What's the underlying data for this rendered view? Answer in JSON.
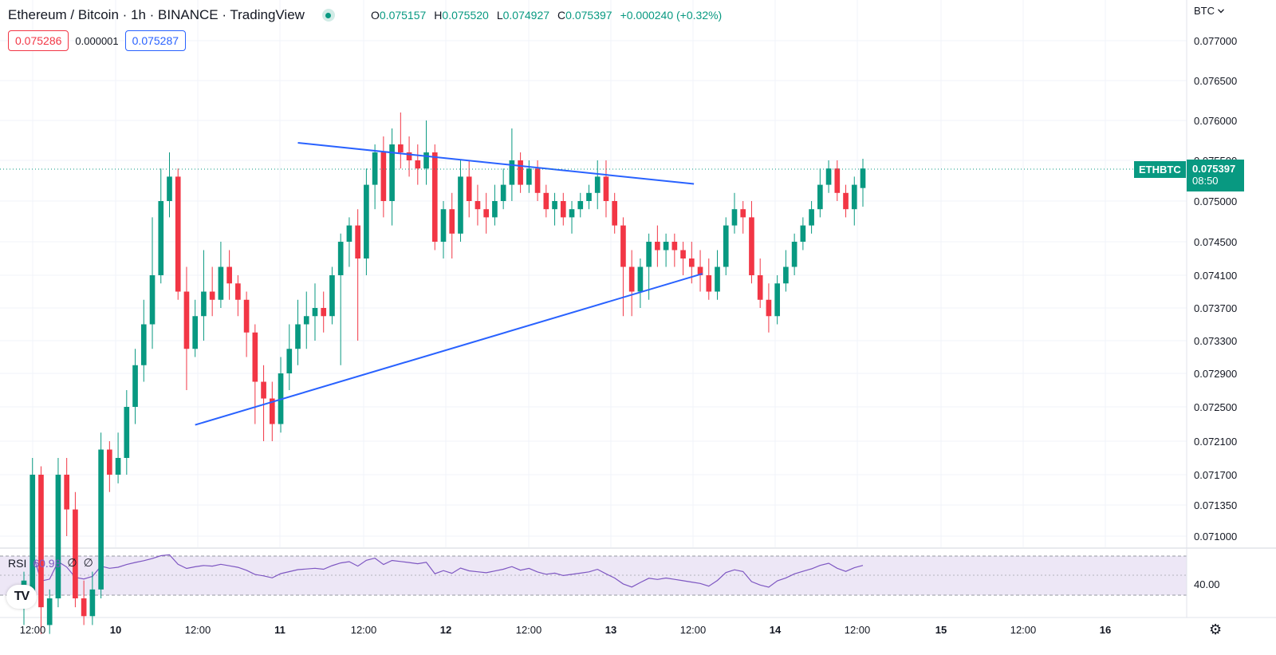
{
  "header": {
    "title": "Ethereum / Bitcoin · 1h · BINANCE · TradingView",
    "ohlc": [
      {
        "k": "O",
        "v": "0.075157"
      },
      {
        "k": "H",
        "v": "0.075520"
      },
      {
        "k": "L",
        "v": "0.074927"
      },
      {
        "k": "C",
        "v": "0.075397"
      },
      {
        "k": "",
        "v": "+0.000240 (+0.32%)"
      }
    ]
  },
  "quote": {
    "sell": "0.075286",
    "spread": "0.000001",
    "buy": "0.075287"
  },
  "axis_unit": "BTC",
  "symbol": "ETHBTC",
  "last_price": "0.075397",
  "countdown": "08:50",
  "rsi": {
    "label": "RSI",
    "value": "60.98",
    "params": [
      "∅",
      "∅"
    ],
    "level_label": "40.00"
  },
  "colors": {
    "up": "#089981",
    "down": "#f23645",
    "trendline": "#2962ff",
    "rsi_line": "#7e57c2",
    "rsi_band": "#ede7f6"
  },
  "icons": {
    "status": "market-open-dot-icon",
    "logo": "tradingview-logo-icon",
    "settings": "gear-icon",
    "unit_dropdown": "chevron-down-icon"
  },
  "chart_data": {
    "type": "candlestick",
    "timeframe": "1h",
    "y_ticks": [
      "0.077000",
      "0.076500",
      "0.076000",
      "0.075500",
      "0.075000",
      "0.074500",
      "0.074100",
      "0.073700",
      "0.073300",
      "0.072900",
      "0.072500",
      "0.072100",
      "0.071700",
      "0.071350",
      "0.071000"
    ],
    "x_ticks": [
      "12:00",
      "10",
      "12:00",
      "11",
      "12:00",
      "12",
      "12:00",
      "13",
      "12:00",
      "14",
      "12:00",
      "15",
      "12:00",
      "16"
    ],
    "ylim": [
      0.0706,
      0.0773
    ],
    "trendlines": [
      {
        "name": "resistance",
        "x_candle": [
          32,
          75
        ],
        "y": [
          0.07572,
          0.07523
        ]
      },
      {
        "name": "support",
        "x_candle": [
          20,
          76
        ],
        "y": [
          0.07229,
          0.07406
        ]
      }
    ],
    "candles": [
      [
        0.0702,
        0.0705,
        0.07,
        0.0706
      ],
      [
        0.0703,
        0.0717,
        0.0703,
        0.0719
      ],
      [
        0.0717,
        0.0702,
        0.0699,
        0.0718
      ],
      [
        0.07,
        0.0703,
        0.0699,
        0.0704
      ],
      [
        0.0703,
        0.0717,
        0.0702,
        0.0719
      ],
      [
        0.0717,
        0.0713,
        0.071,
        0.0719
      ],
      [
        0.0713,
        0.0703,
        0.0702,
        0.0715
      ],
      [
        0.0703,
        0.0701,
        0.07,
        0.0705
      ],
      [
        0.0701,
        0.0704,
        0.07,
        0.0706
      ],
      [
        0.0704,
        0.072,
        0.0703,
        0.0722
      ],
      [
        0.072,
        0.0717,
        0.0715,
        0.0721
      ],
      [
        0.0717,
        0.0719,
        0.0716,
        0.0722
      ],
      [
        0.0719,
        0.0725,
        0.0717,
        0.0727
      ],
      [
        0.0725,
        0.073,
        0.0723,
        0.0732
      ],
      [
        0.073,
        0.0735,
        0.0728,
        0.0738
      ],
      [
        0.0735,
        0.0741,
        0.0732,
        0.0748
      ],
      [
        0.0741,
        0.075,
        0.074,
        0.0754
      ],
      [
        0.075,
        0.0753,
        0.0748,
        0.0756
      ],
      [
        0.0753,
        0.0739,
        0.0738,
        0.0754
      ],
      [
        0.0739,
        0.0732,
        0.0727,
        0.0742
      ],
      [
        0.0732,
        0.0736,
        0.0731,
        0.0738
      ],
      [
        0.0736,
        0.0739,
        0.0733,
        0.0744
      ],
      [
        0.0739,
        0.0738,
        0.0736,
        0.0742
      ],
      [
        0.0738,
        0.0742,
        0.0737,
        0.0745
      ],
      [
        0.0742,
        0.074,
        0.0738,
        0.0744
      ],
      [
        0.074,
        0.0738,
        0.0736,
        0.0741
      ],
      [
        0.0738,
        0.0734,
        0.0731,
        0.0739
      ],
      [
        0.0734,
        0.0728,
        0.0723,
        0.0735
      ],
      [
        0.0728,
        0.0726,
        0.0721,
        0.073
      ],
      [
        0.0726,
        0.0723,
        0.0721,
        0.0728
      ],
      [
        0.0723,
        0.0729,
        0.0722,
        0.0731
      ],
      [
        0.0729,
        0.0732,
        0.0727,
        0.0735
      ],
      [
        0.0732,
        0.0735,
        0.073,
        0.0738
      ],
      [
        0.0735,
        0.0736,
        0.0732,
        0.0739
      ],
      [
        0.0736,
        0.0737,
        0.0733,
        0.074
      ],
      [
        0.0737,
        0.0736,
        0.0734,
        0.0739
      ],
      [
        0.0736,
        0.0741,
        0.0735,
        0.0742
      ],
      [
        0.0741,
        0.0745,
        0.073,
        0.0746
      ],
      [
        0.0745,
        0.0747,
        0.0742,
        0.0748
      ],
      [
        0.0747,
        0.0743,
        0.0733,
        0.0749
      ],
      [
        0.0743,
        0.0752,
        0.0741,
        0.0754
      ],
      [
        0.0752,
        0.0756,
        0.0749,
        0.0757
      ],
      [
        0.0756,
        0.075,
        0.0748,
        0.0758
      ],
      [
        0.075,
        0.0757,
        0.0747,
        0.0759
      ],
      [
        0.0757,
        0.0756,
        0.0754,
        0.0761
      ],
      [
        0.0756,
        0.0755,
        0.0753,
        0.0758
      ],
      [
        0.0755,
        0.0754,
        0.0752,
        0.0757
      ],
      [
        0.0754,
        0.0756,
        0.0752,
        0.076
      ],
      [
        0.0756,
        0.0745,
        0.0744,
        0.0757
      ],
      [
        0.0745,
        0.0749,
        0.0743,
        0.075
      ],
      [
        0.0749,
        0.0746,
        0.0743,
        0.0751
      ],
      [
        0.0746,
        0.0753,
        0.0745,
        0.0755
      ],
      [
        0.0753,
        0.075,
        0.0748,
        0.0755
      ],
      [
        0.075,
        0.0749,
        0.0747,
        0.0752
      ],
      [
        0.0749,
        0.0748,
        0.0746,
        0.0751
      ],
      [
        0.0748,
        0.075,
        0.0747,
        0.0752
      ],
      [
        0.075,
        0.0752,
        0.0749,
        0.0754
      ],
      [
        0.0752,
        0.0755,
        0.075,
        0.0759
      ],
      [
        0.0755,
        0.0752,
        0.0751,
        0.0756
      ],
      [
        0.0752,
        0.0754,
        0.0751,
        0.0755
      ],
      [
        0.0754,
        0.0751,
        0.075,
        0.0755
      ],
      [
        0.0751,
        0.0749,
        0.0748,
        0.0752
      ],
      [
        0.0749,
        0.075,
        0.0747,
        0.0751
      ],
      [
        0.075,
        0.0748,
        0.0747,
        0.0751
      ],
      [
        0.0748,
        0.0749,
        0.0746,
        0.075
      ],
      [
        0.0749,
        0.075,
        0.0748,
        0.0751
      ],
      [
        0.075,
        0.0751,
        0.0749,
        0.0752
      ],
      [
        0.0751,
        0.0753,
        0.0749,
        0.0755
      ],
      [
        0.0753,
        0.075,
        0.0748,
        0.0755
      ],
      [
        0.075,
        0.0747,
        0.0746,
        0.0751
      ],
      [
        0.0747,
        0.0742,
        0.0736,
        0.0748
      ],
      [
        0.0742,
        0.0739,
        0.0736,
        0.0744
      ],
      [
        0.0739,
        0.0742,
        0.0737,
        0.0743
      ],
      [
        0.0742,
        0.0745,
        0.0738,
        0.0746
      ],
      [
        0.0745,
        0.0744,
        0.0742,
        0.0747
      ],
      [
        0.0744,
        0.0745,
        0.0742,
        0.0746
      ],
      [
        0.0745,
        0.0744,
        0.0742,
        0.0746
      ],
      [
        0.0744,
        0.0743,
        0.0741,
        0.0745
      ],
      [
        0.0743,
        0.0742,
        0.074,
        0.0745
      ],
      [
        0.0742,
        0.0741,
        0.0739,
        0.0744
      ],
      [
        0.0741,
        0.0739,
        0.0738,
        0.0743
      ],
      [
        0.0739,
        0.0742,
        0.0738,
        0.0744
      ],
      [
        0.0742,
        0.0747,
        0.0741,
        0.0748
      ],
      [
        0.0747,
        0.0749,
        0.0746,
        0.0751
      ],
      [
        0.0749,
        0.0748,
        0.0746,
        0.075
      ],
      [
        0.0748,
        0.0741,
        0.074,
        0.075
      ],
      [
        0.0741,
        0.0738,
        0.0737,
        0.0743
      ],
      [
        0.0738,
        0.0736,
        0.0734,
        0.074
      ],
      [
        0.0736,
        0.074,
        0.0735,
        0.0741
      ],
      [
        0.074,
        0.0742,
        0.0739,
        0.0744
      ],
      [
        0.0742,
        0.0745,
        0.0741,
        0.0746
      ],
      [
        0.0745,
        0.0747,
        0.0744,
        0.0748
      ],
      [
        0.0747,
        0.0749,
        0.0746,
        0.075
      ],
      [
        0.0749,
        0.0752,
        0.0748,
        0.0754
      ],
      [
        0.0752,
        0.0754,
        0.0751,
        0.0755
      ],
      [
        0.0754,
        0.0751,
        0.075,
        0.0755
      ],
      [
        0.0751,
        0.0749,
        0.0748,
        0.0752
      ],
      [
        0.0749,
        0.0752,
        0.0747,
        0.0753
      ],
      [
        0.07516,
        0.0754,
        0.07493,
        0.07552
      ]
    ]
  }
}
